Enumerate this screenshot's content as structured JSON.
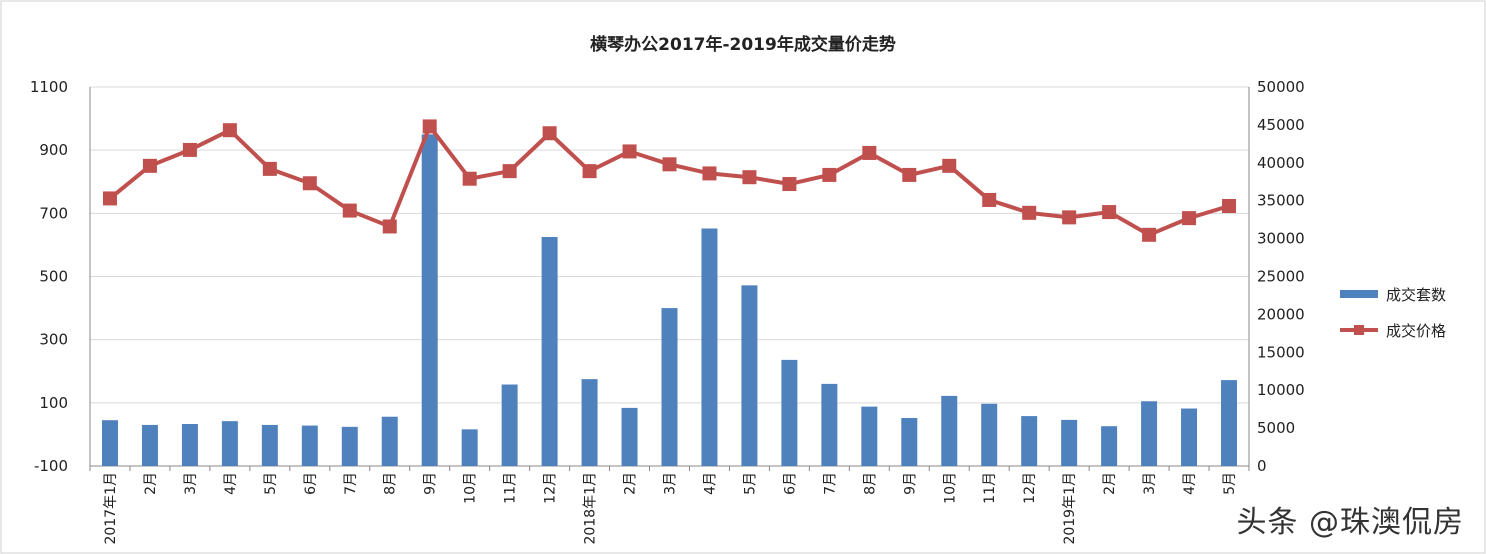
{
  "colors": {
    "bar": "#4f81bd",
    "line": "#c0504d",
    "grid": "#d9d9d9",
    "axis": "#888888"
  },
  "chart_data": {
    "type": "bar",
    "title": "横琴办公2017年-2019年成交量价走势",
    "categories": [
      "2017年1月",
      "2月",
      "3月",
      "4月",
      "5月",
      "6月",
      "7月",
      "8月",
      "9月",
      "10月",
      "11月",
      "12月",
      "2018年1月",
      "2月",
      "3月",
      "4月",
      "5月",
      "6月",
      "7月",
      "8月",
      "9月",
      "10月",
      "11月",
      "12月",
      "2019年1月",
      "2月",
      "3月",
      "4月",
      "5月"
    ],
    "series": [
      {
        "name": "成交套数",
        "type": "bar",
        "axis": "left",
        "values": [
          45,
          30,
          33,
          42,
          30,
          28,
          24,
          56,
          950,
          16,
          158,
          625,
          175,
          84,
          400,
          652,
          472,
          236,
          160,
          88,
          52,
          122,
          97,
          58,
          46,
          26,
          105,
          82,
          172
        ]
      },
      {
        "name": "成交价格",
        "type": "line",
        "axis": "right",
        "values": [
          35300,
          39600,
          41700,
          44300,
          39200,
          37300,
          33700,
          31600,
          44800,
          37900,
          38900,
          43900,
          38900,
          41500,
          39800,
          38600,
          38100,
          37200,
          38400,
          41300,
          38400,
          39600,
          35100,
          33400,
          32800,
          33500,
          30500,
          32700,
          34300
        ]
      }
    ],
    "y_left": {
      "min": -100,
      "max": 1100,
      "ticks": [
        1100,
        900,
        700,
        500,
        300,
        100,
        -100
      ]
    },
    "y_right": {
      "min": 0,
      "max": 50000,
      "ticks": [
        50000,
        45000,
        40000,
        35000,
        30000,
        25000,
        20000,
        15000,
        10000,
        5000,
        0
      ]
    },
    "grid": true,
    "legend_position": "right"
  },
  "watermark": "头条 @珠澳侃房"
}
